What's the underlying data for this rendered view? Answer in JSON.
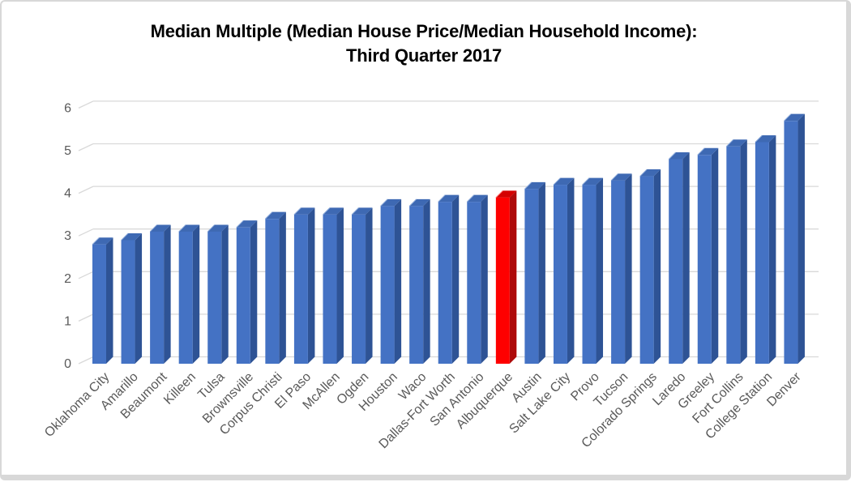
{
  "title": {
    "line1": "Median Multiple (Median House Price/Median Household Income):",
    "line2": "Third Quarter 2017"
  },
  "chart_data": {
    "type": "bar",
    "style": "3d-column",
    "title": "Median Multiple (Median House Price/Median Household Income): Third Quarter 2017",
    "categories": [
      "Oklahoma City",
      "Amarillo",
      "Beaumont",
      "Killeen",
      "Tulsa",
      "Brownsville",
      "Corpus Christi",
      "El Paso",
      "McAllen",
      "Ogden",
      "Houston",
      "Waco",
      "Dallas-Fort Worth",
      "San Antonio",
      "Albuquerque",
      "Austin",
      "Salt Lake City",
      "Provo",
      "Tucson",
      "Colorado Springs",
      "Laredo",
      "Greeley",
      "Fort Collins",
      "College Station",
      "Denver"
    ],
    "values": [
      2.8,
      2.9,
      3.1,
      3.1,
      3.1,
      3.2,
      3.4,
      3.5,
      3.5,
      3.5,
      3.7,
      3.7,
      3.8,
      3.8,
      3.9,
      4.1,
      4.2,
      4.2,
      4.3,
      4.4,
      4.8,
      4.9,
      5.1,
      5.2,
      5.7
    ],
    "highlight_category": "Albuquerque",
    "highlight_index": 14,
    "xlabel": "",
    "ylabel": "",
    "ylim": [
      0,
      6
    ],
    "yticks": [
      0,
      1,
      2,
      3,
      4,
      5,
      6
    ],
    "grid": true,
    "legend": "none",
    "colors": {
      "bar_face": "#4472C4",
      "bar_side": "#2E5395",
      "bar_top": "#3E69B3",
      "bar_edge_highlight": "#91AEDC",
      "highlight_face": "#FE0000",
      "highlight_side": "#AE0A0A",
      "highlight_top": "#D40000",
      "highlight_edge": "#FF8080",
      "gridline": "#D9D9D9",
      "axis_text": "#595959",
      "title_text": "#000000",
      "frame_border": "#D8D8D8",
      "background": "#FFFFFF"
    }
  }
}
